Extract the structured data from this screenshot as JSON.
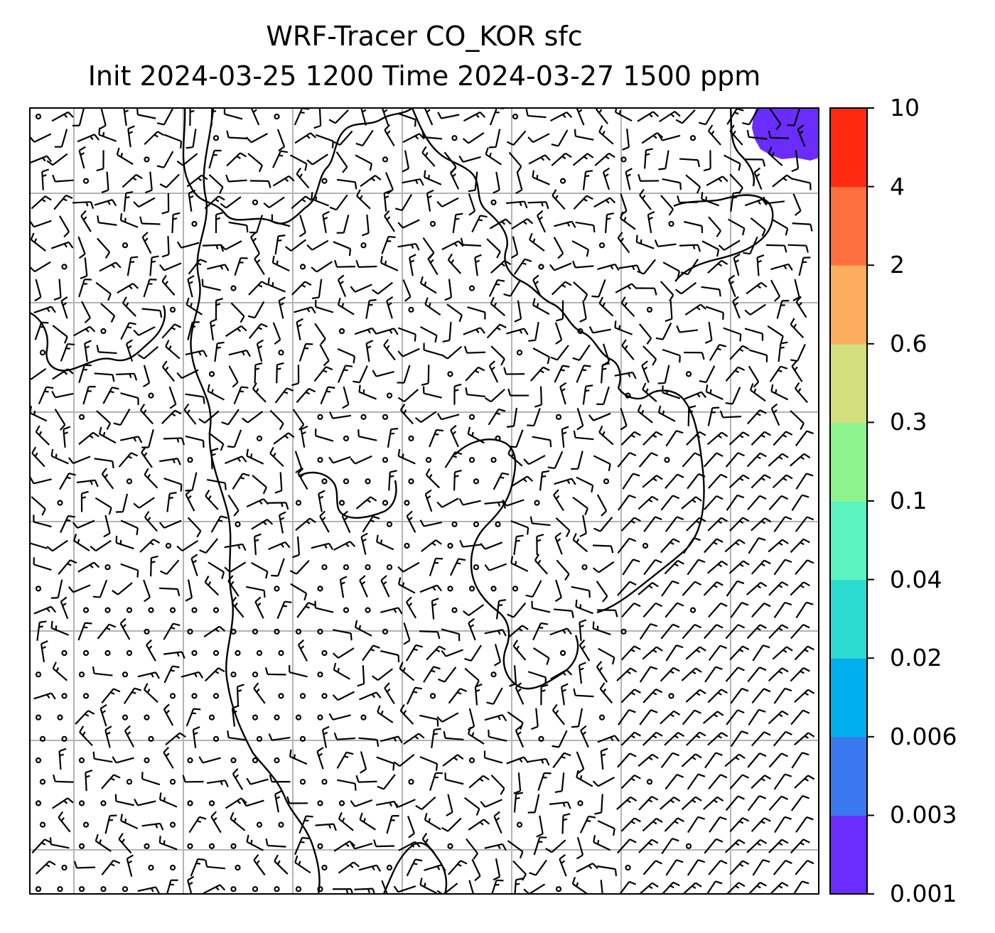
{
  "title": {
    "line1": "WRF-Tracer CO_KOR sfc",
    "line2": "Init 2024-03-25 1200 Time 2024-03-27 1500 ppm"
  },
  "colorbar": {
    "levels": [
      "0.001",
      "0.003",
      "0.006",
      "0.02",
      "0.04",
      "0.1",
      "0.3",
      "0.6",
      "2",
      "4",
      "10"
    ],
    "colors": [
      "#6a2cff",
      "#3a78f0",
      "#00b0ee",
      "#2cdcd0",
      "#5cf4c0",
      "#8ef48e",
      "#d2e07e",
      "#fcae5e",
      "#ff7040",
      "#ff2a10"
    ]
  },
  "map": {
    "tracer_fill_color": "#6a2cff",
    "coast_color": "#000000",
    "grid_color": "#b4b4b4",
    "barb_color": "#000000"
  }
}
